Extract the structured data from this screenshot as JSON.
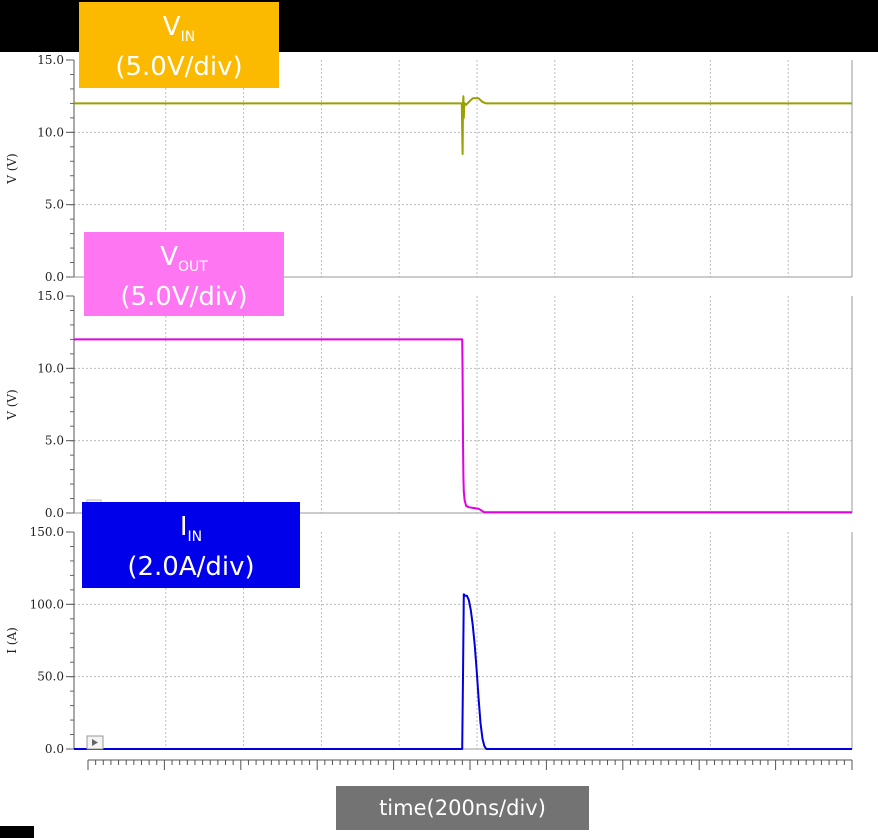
{
  "colors": {
    "vin": "#9aa000",
    "vout": "#e000e0",
    "iin": "#0000e0",
    "grid": "#bdbdbd",
    "tag_vin": "#fbb900",
    "tag_vout": "#ff76f3",
    "tag_iin": "#0000ea",
    "tag_time": "#737373"
  },
  "labels": {
    "vin_main": "V",
    "vin_sub": "IN",
    "vin_scale": "(5.0V/div)",
    "vout_main": "V",
    "vout_sub": "OUT",
    "vout_scale": "(5.0V/div)",
    "iin_main": "I",
    "iin_sub": "IN",
    "iin_scale": "(2.0A/div)",
    "time": "time(200ns/div)"
  },
  "chart_data": [
    {
      "type": "line",
      "name": "vin",
      "ylabel": "V (V)",
      "ylim": [
        0,
        15
      ],
      "yticks": [
        "0.0",
        "5.0",
        "10.0",
        "15.0"
      ],
      "xlim": [
        0,
        2000
      ],
      "grid": true,
      "series": [
        {
          "name": "V_IN",
          "color": "#9aa000",
          "x": [
            0,
            997,
            998,
            999,
            1000,
            1001,
            1002,
            1003,
            1005,
            1008,
            1015,
            1025,
            1040,
            1050,
            1060,
            2000
          ],
          "y": [
            12.0,
            12.0,
            10.0,
            8.5,
            12.0,
            12.5,
            11.0,
            11.8,
            12.0,
            11.9,
            12.1,
            12.35,
            12.35,
            12.1,
            12.0,
            12.0
          ]
        }
      ]
    },
    {
      "type": "line",
      "name": "vout",
      "ylabel": "V (V)",
      "ylim": [
        0,
        15
      ],
      "yticks": [
        "0.0",
        "5.0",
        "10.0",
        "15.0"
      ],
      "xlim": [
        0,
        2000
      ],
      "grid": true,
      "series": [
        {
          "name": "V_OUT",
          "color": "#e000e0",
          "x": [
            0,
            998,
            999,
            1000,
            1001,
            1002,
            1004,
            1008,
            1015,
            1025,
            1040,
            1055,
            2000
          ],
          "y": [
            12.0,
            12.0,
            9.5,
            5.0,
            2.5,
            1.5,
            0.9,
            0.5,
            0.4,
            0.35,
            0.3,
            0.05,
            0.05
          ]
        }
      ]
    },
    {
      "type": "line",
      "name": "iin",
      "ylabel": "I (A)",
      "ylim": [
        0,
        150
      ],
      "yticks": [
        "0.0",
        "50.0",
        "100.0",
        "150.0"
      ],
      "xlim": [
        0,
        2000
      ],
      "grid": true,
      "series": [
        {
          "name": "I_IN",
          "color": "#0000e0",
          "x": [
            0,
            998,
            1000,
            1002,
            1005,
            1010,
            1015,
            1020,
            1025,
            1030,
            1035,
            1040,
            1045,
            1050,
            1055,
            1060,
            2000
          ],
          "y": [
            0,
            0,
            50,
            107,
            106,
            106,
            103,
            96,
            86,
            72,
            55,
            35,
            18,
            7,
            2,
            0,
            0
          ]
        }
      ]
    }
  ]
}
